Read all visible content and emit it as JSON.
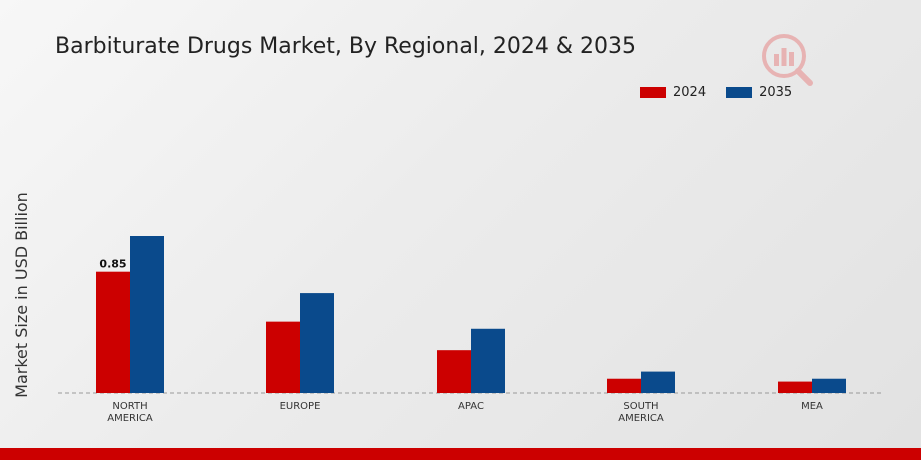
{
  "chart_data": {
    "type": "bar",
    "title": "Barbiturate Drugs Market, By Regional, 2024 & 2035",
    "xlabel": "",
    "ylabel": "Market Size in USD Billion",
    "categories": [
      [
        "NORTH",
        "AMERICA"
      ],
      [
        "EUROPE"
      ],
      [
        "APAC"
      ],
      [
        "SOUTH",
        "AMERICA"
      ],
      [
        "MEA"
      ]
    ],
    "series": [
      {
        "name": "2024",
        "color": "#cc0000",
        "values": [
          0.85,
          0.5,
          0.3,
          0.1,
          0.08
        ]
      },
      {
        "name": "2035",
        "color": "#0a4a8c",
        "values": [
          1.1,
          0.7,
          0.45,
          0.15,
          0.1
        ]
      }
    ],
    "data_labels": [
      {
        "series": 0,
        "index": 0,
        "text": "0.85"
      }
    ],
    "ylim": [
      0,
      1.35
    ],
    "grid": false,
    "legend_position": "top-right",
    "baseline_style": "dashed"
  },
  "logo_icon": "market-research-logo-icon",
  "footer_color": "#cc0000"
}
